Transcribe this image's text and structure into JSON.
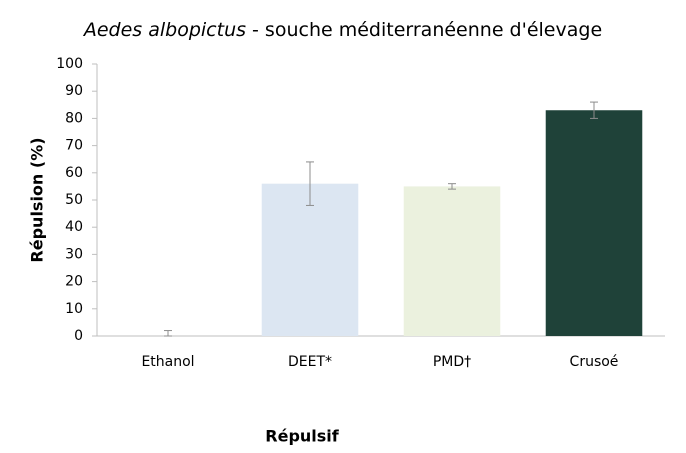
{
  "chart_data": {
    "type": "bar",
    "title": {
      "species": "Aedes albopictus",
      "text": "- souche méditerranéenne d'élevage"
    },
    "x_label": "Répulsif",
    "y_label": "Répulsion (%)",
    "categories": [
      "Ethanol",
      "DEET*",
      "PMD†",
      "Crusoé"
    ],
    "values": [
      0,
      56,
      55,
      83
    ],
    "errors": [
      2,
      8,
      1,
      3
    ],
    "colors": [
      "#ffffff",
      "#dce6f2",
      "#ebf1de",
      "#1f4239"
    ],
    "ylim": [
      0,
      100
    ],
    "yticks": [
      0,
      10,
      20,
      30,
      40,
      50,
      60,
      70,
      80,
      90,
      100
    ],
    "grid": false
  }
}
